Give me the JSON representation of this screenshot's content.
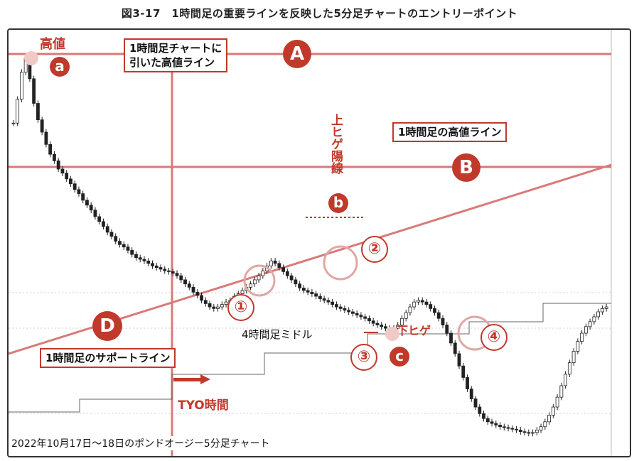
{
  "figure_title": "図3-17　1時間足の重要ラインを反映した5分足チャートのエントリーポイント",
  "caption": "2022年10月17日～18日のポンドオージー5分足チャート",
  "annotations": {
    "high_label": "高値",
    "hline_a_label_line1": "1時間足チャートに",
    "hline_a_label_line2": "引いた高値ライン",
    "hline_b_label": "1時間足の高値ライン",
    "upper_wick_label": "上ヒゲ陽線",
    "lower_wick_label": "下ヒゲ",
    "midline_label": "4時間足ミドル",
    "support_label": "1時間足のサポートライン",
    "tyo_label": "TYO時間",
    "letter_a": "A",
    "letter_b": "B",
    "letter_d": "D",
    "point_a": "a",
    "point_b": "b",
    "point_c": "c",
    "num_1": "①",
    "num_2": "②",
    "num_3": "③",
    "num_4": "④"
  },
  "colors": {
    "accent_red": "#c0392b",
    "line_red": "#d97a78",
    "candle": "#222222",
    "grid": "#cfcfcf"
  },
  "chart_data": {
    "type": "line",
    "title": "",
    "series": [
      {
        "values": [
          1.8986,
          1.9015,
          1.9048,
          1.9065,
          1.904,
          1.901,
          1.899,
          1.8975,
          1.896,
          1.8948,
          1.894,
          1.893,
          1.8925,
          1.8918,
          1.8912,
          1.8905,
          1.89,
          1.8892,
          1.8886,
          1.888,
          1.8872,
          1.8866,
          1.886,
          1.8853,
          1.8848,
          1.8842,
          1.8838,
          1.8835,
          1.8831,
          1.8826,
          1.8822,
          1.882,
          1.8818,
          1.8815,
          1.8812,
          1.881,
          1.8808,
          1.8806,
          1.8805,
          1.8803,
          1.88,
          1.8795,
          1.879,
          1.8786,
          1.878,
          1.8776,
          1.877,
          1.8766,
          1.8762,
          1.876,
          1.8762,
          1.8765,
          1.8768,
          1.877,
          1.8775,
          1.8778,
          1.8782,
          1.8786,
          1.879,
          1.8795,
          1.88,
          1.8806,
          1.8812,
          1.8818,
          1.8815,
          1.881,
          1.8805,
          1.88,
          1.8795,
          1.879,
          1.8785,
          1.8782,
          1.878,
          1.8778,
          1.8775,
          1.8772,
          1.877,
          1.8768,
          1.8765,
          1.8762,
          1.876,
          1.8758,
          1.8756,
          1.8754,
          1.8752,
          1.875,
          1.8748,
          1.8745,
          1.8742,
          1.874,
          1.8738,
          1.8736,
          1.8734,
          1.8736,
          1.874,
          1.8748,
          1.8755,
          1.8762,
          1.8768,
          1.877,
          1.8768,
          1.8765,
          1.876,
          1.8755,
          1.8748,
          1.874,
          1.873,
          1.8718,
          1.8705,
          1.869,
          1.8676,
          1.8662,
          1.865,
          1.864,
          1.8632,
          1.8626,
          1.8622,
          1.862,
          1.8618,
          1.8616,
          1.8615,
          1.8614,
          1.8613,
          1.8612,
          1.861,
          1.8609,
          1.8608,
          1.8609,
          1.8612,
          1.8616,
          1.8622,
          1.863,
          1.864,
          1.8652,
          1.8666,
          1.868,
          1.8694,
          1.8708,
          1.872,
          1.873,
          1.8738,
          1.8744,
          1.875,
          1.8756,
          1.876,
          1.8762
        ]
      }
    ]
  }
}
